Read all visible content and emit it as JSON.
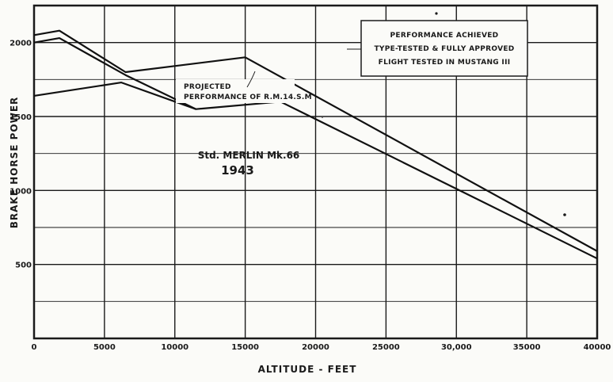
{
  "chart_data": {
    "type": "line",
    "xlabel": "ALTITUDE - FEET",
    "ylabel": "BRAKE HORSE POWER",
    "xlim": [
      0,
      40000
    ],
    "ylim": [
      0,
      2250
    ],
    "x_ticks": [
      "0",
      "5000",
      "10000",
      "15000",
      "20000",
      "25000",
      "30,000",
      "35000",
      "40000"
    ],
    "y_ticks": [
      "500",
      "1000",
      "1500",
      "2000"
    ],
    "grid": true,
    "series": [
      {
        "label": "PERFORMANCE ACHIEVED TYPE-TESTED & FULLY APPROVED FLIGHT TESTED IN MUSTANG III",
        "points": [
          [
            0,
            2050
          ],
          [
            1800,
            2080
          ],
          [
            6500,
            1800
          ],
          [
            15000,
            1900
          ],
          [
            40000,
            590
          ]
        ]
      },
      {
        "label": "PROJECTED PERFORMANCE OF R.M.14.S.M",
        "points": [
          [
            0,
            2000
          ],
          [
            1800,
            2030
          ],
          [
            6500,
            1780
          ],
          [
            11500,
            1550
          ],
          [
            17500,
            1600
          ],
          [
            40000,
            540
          ]
        ]
      },
      {
        "label": "Std. MERLIN Mk.66 1943",
        "points": [
          [
            0,
            1640
          ],
          [
            6200,
            1730
          ],
          [
            11500,
            1550
          ]
        ]
      }
    ],
    "annotations": {
      "box_line1": "PERFORMANCE ACHIEVED",
      "box_line2": "TYPE-TESTED & FULLY APPROVED",
      "box_line3": "FLIGHT TESTED IN MUSTANG III",
      "projected_line1": "PROJECTED",
      "projected_line2": "PERFORMANCE OF R.M.14.S.M",
      "merlin_line1": "Std. MERLIN Mk.66",
      "merlin_line2": "1943"
    }
  }
}
